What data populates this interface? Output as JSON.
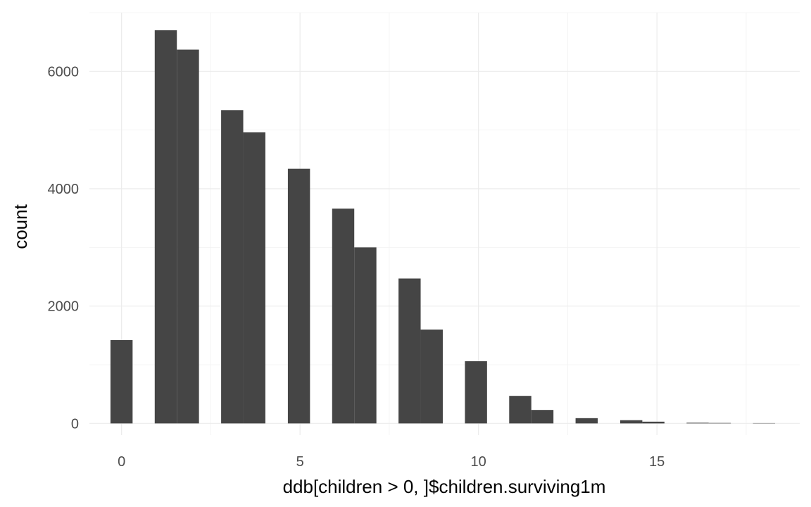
{
  "chart_data": {
    "type": "bar",
    "xlabel": "ddb[children > 0, ]$children.surviving1m",
    "ylabel": "count",
    "xlim": [
      -0.9,
      19.0
    ],
    "ylim": [
      -200,
      7000
    ],
    "x_ticks": [
      0,
      5,
      10,
      15
    ],
    "y_ticks": [
      0,
      2000,
      4000,
      6000
    ],
    "bin_width": 0.62,
    "bins": [
      {
        "x": 0,
        "value": 1420
      },
      {
        "x": 1.24,
        "value": 6700
      },
      {
        "x": 1.86,
        "value": 6370
      },
      {
        "x": 3.1,
        "value": 5340
      },
      {
        "x": 3.72,
        "value": 4960
      },
      {
        "x": 4.97,
        "value": 4340
      },
      {
        "x": 6.21,
        "value": 3660
      },
      {
        "x": 6.83,
        "value": 3000
      },
      {
        "x": 8.07,
        "value": 2470
      },
      {
        "x": 8.69,
        "value": 1600
      },
      {
        "x": 9.93,
        "value": 1060
      },
      {
        "x": 11.17,
        "value": 470
      },
      {
        "x": 11.79,
        "value": 230
      },
      {
        "x": 13.03,
        "value": 90
      },
      {
        "x": 14.28,
        "value": 55
      },
      {
        "x": 14.9,
        "value": 30
      },
      {
        "x": 16.14,
        "value": 12
      },
      {
        "x": 16.76,
        "value": 8
      },
      {
        "x": 18.0,
        "value": 5
      }
    ],
    "grid": true,
    "colors": {
      "bar": "#454545",
      "grid": "#ebebeb",
      "background": "#ffffff"
    }
  }
}
